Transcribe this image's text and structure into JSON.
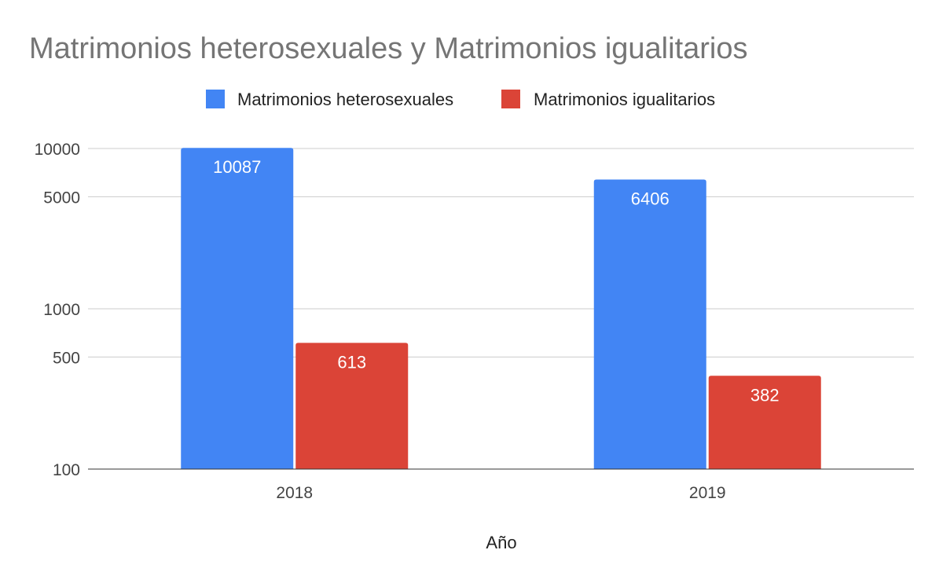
{
  "chart_data": {
    "type": "bar",
    "title": "Matrimonios heterosexuales y Matrimonios igualitarios",
    "xlabel": "Año",
    "ylabel": "",
    "yscale": "log",
    "ylim": [
      100,
      10000
    ],
    "yticks": [
      100,
      500,
      1000,
      5000,
      10000
    ],
    "ytick_labels": [
      "100",
      "500",
      "1000",
      "5000",
      "10000"
    ],
    "categories": [
      "2018",
      "2019"
    ],
    "legend_position": "top",
    "grid": true,
    "series": [
      {
        "name": "Matrimonios heterosexuales",
        "color": "#4285f4",
        "values": [
          10087,
          6406
        ],
        "labels": [
          "10087",
          "6406"
        ]
      },
      {
        "name": "Matrimonios igualitarios",
        "color": "#db4437",
        "values": [
          613,
          382
        ],
        "labels": [
          "613",
          "382"
        ]
      }
    ]
  }
}
